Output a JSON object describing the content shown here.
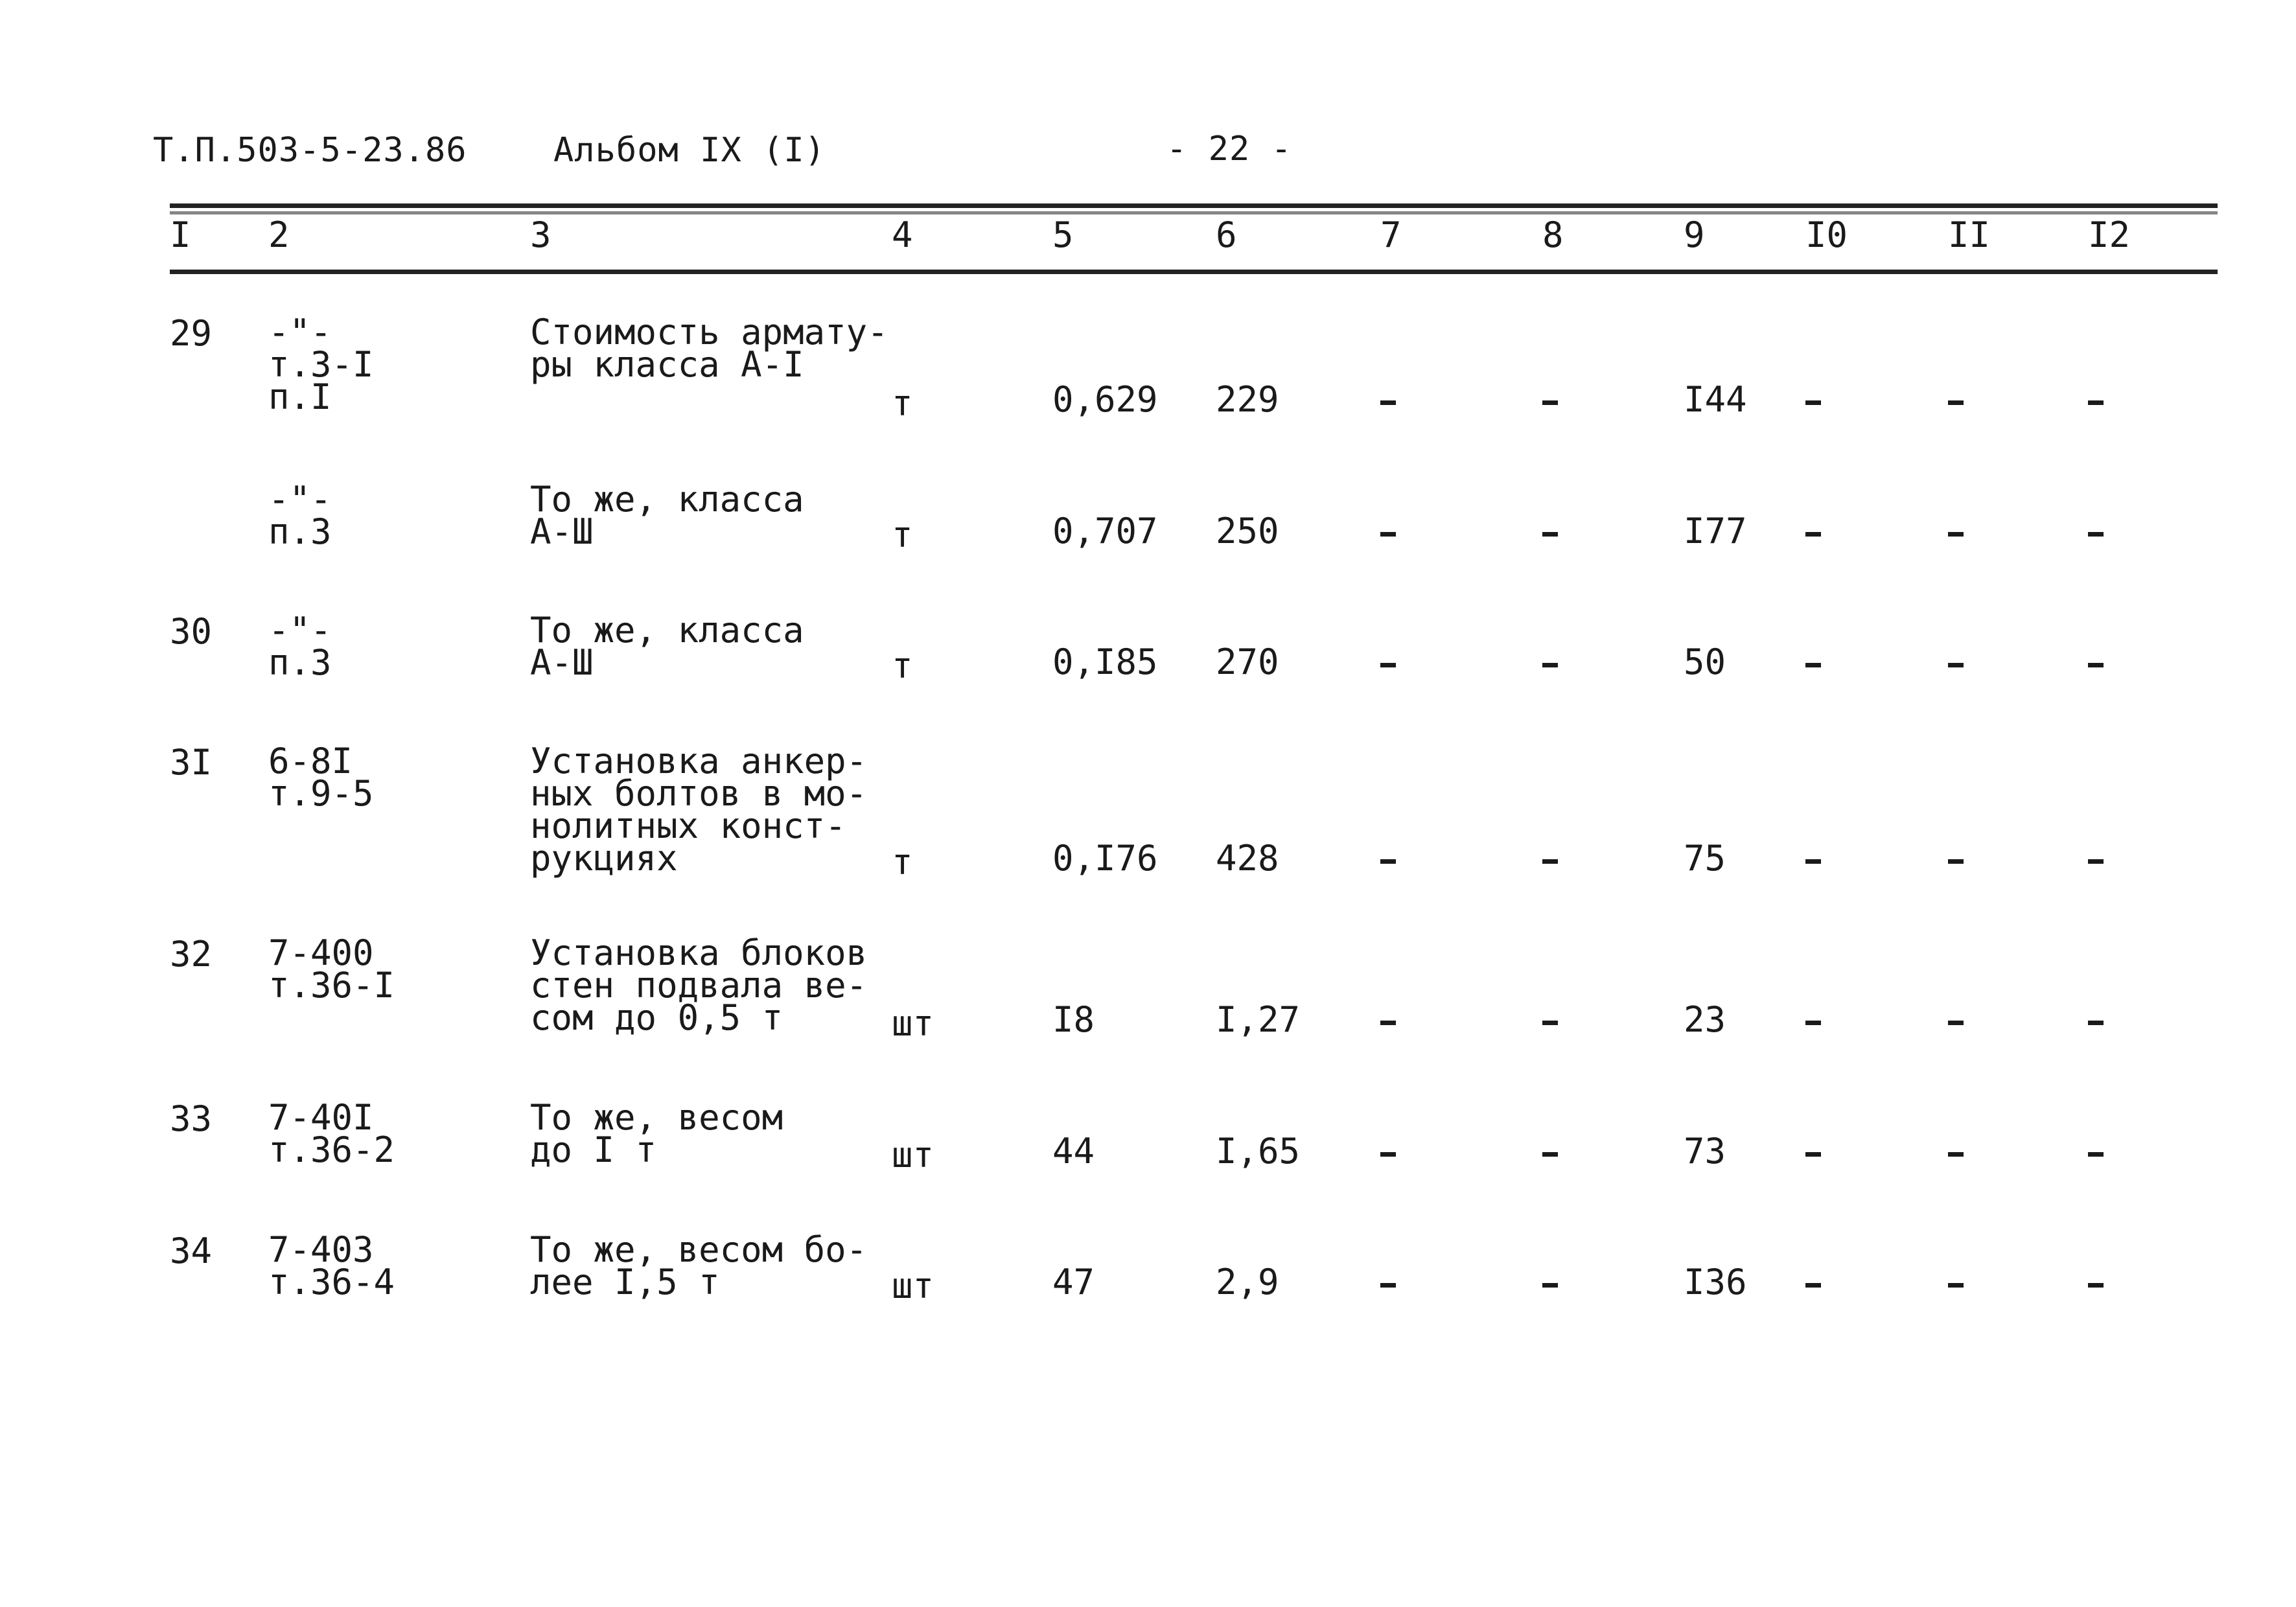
{
  "header": {
    "doc_code": "Т.П.503-5-23.86",
    "album": "Альбом IX (I)",
    "page_number": "- 22 -"
  },
  "column_numbers": [
    "I",
    "2",
    "3",
    "4",
    "5",
    "6",
    "7",
    "8",
    "9",
    "I0",
    "II",
    "I2"
  ],
  "rows": [
    {
      "n": "29",
      "code": "-\"-\nт.3-I\nп.I",
      "name": "Стоимость армату-\nры класса А-I",
      "unit": "т",
      "qty": "0,629",
      "price": "229",
      "c7": "-",
      "c8": "-",
      "total": "I44",
      "c10": "-",
      "c11": "-",
      "c12": "-"
    },
    {
      "n": "",
      "code": "-\"-\nп.3",
      "name": "То же, класса\nА-Ш",
      "unit": "т",
      "qty": "0,707",
      "price": "250",
      "c7": "-",
      "c8": "-",
      "total": "I77",
      "c10": "-",
      "c11": "-",
      "c12": "-"
    },
    {
      "n": "30",
      "code": "-\"-\nп.3",
      "name": "То же, класса\nА-Ш",
      "unit": "т",
      "qty": "0,I85",
      "price": "270",
      "c7": "-",
      "c8": "-",
      "total": "50",
      "c10": "-",
      "c11": "-",
      "c12": "-"
    },
    {
      "n": "3I",
      "code": "6-8I\nт.9-5",
      "name": "Установка анкер-\nных болтов в мо-\nнолитных конст-\nрукциях",
      "unit": "т",
      "qty": "0,I76",
      "price": "428",
      "c7": "-",
      "c8": "-",
      "total": "75",
      "c10": "-",
      "c11": "-",
      "c12": "-"
    },
    {
      "n": "32",
      "code": "7-400\nт.36-I",
      "name": "Установка блоков\nстен подвала ве-\nсом до 0,5 т",
      "unit": "шт",
      "qty": "I8",
      "price": "I,27",
      "c7": "-",
      "c8": "-",
      "total": "23",
      "c10": "-",
      "c11": "-",
      "c12": "-"
    },
    {
      "n": "33",
      "code": "7-40I\nт.36-2",
      "name": "То же, весом\nдо I т",
      "unit": "шт",
      "qty": "44",
      "price": "I,65",
      "c7": "-",
      "c8": "-",
      "total": "73",
      "c10": "-",
      "c11": "-",
      "c12": "-"
    },
    {
      "n": "34",
      "code": "7-403\nт.36-4",
      "name": "То же, весом бо-\nлее I,5 т",
      "unit": "шт",
      "qty": "47",
      "price": "2,9",
      "c7": "-",
      "c8": "-",
      "total": "I36",
      "c10": "-",
      "c11": "-",
      "c12": "-"
    }
  ]
}
